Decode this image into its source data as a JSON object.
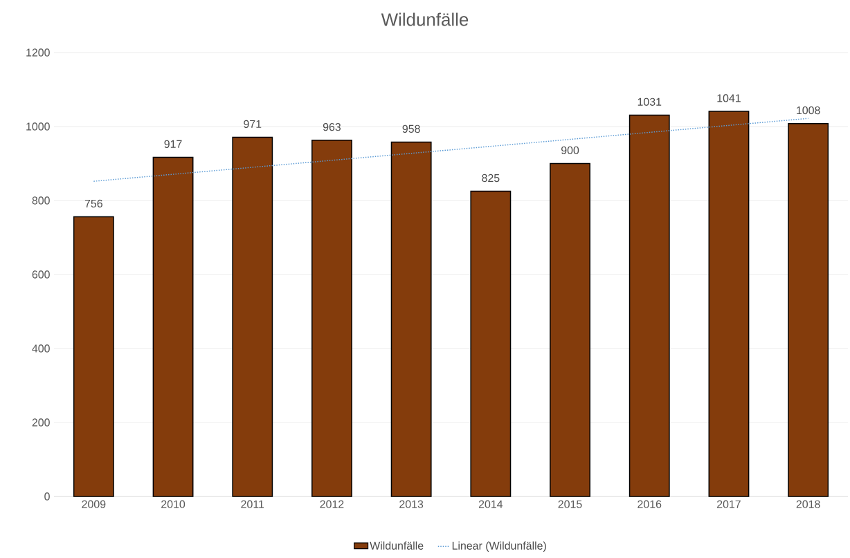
{
  "chart_data": {
    "type": "bar",
    "title": "Wildunfälle",
    "x": [
      2009,
      2010,
      2011,
      2012,
      2013,
      2014,
      2015,
      2016,
      2017,
      2018
    ],
    "series": [
      {
        "name": "Wildunfälle",
        "color": "#843c0c",
        "values": [
          756,
          917,
          971,
          963,
          958,
          825,
          900,
          1031,
          1041,
          1008
        ],
        "value_labels": [
          "756",
          "917",
          "971",
          "963",
          "958",
          "825",
          "900",
          "1031",
          "1041",
          "1008"
        ]
      },
      {
        "name": "Linear (Wildunfälle)",
        "type": "line",
        "color": "#5b9bd5",
        "line_style": "dotted",
        "x": [
          2009,
          2018
        ],
        "values": [
          852,
          1022
        ]
      }
    ],
    "xlim": [
      2008.5,
      2018.5
    ],
    "xticks": [
      2009,
      2010,
      2011,
      2012,
      2013,
      2014,
      2015,
      2016,
      2017,
      2018
    ],
    "ylim": [
      0,
      1200
    ],
    "yticks": [
      0,
      200,
      400,
      600,
      800,
      1000,
      1200
    ],
    "grid": "y",
    "legend": "bottom"
  }
}
